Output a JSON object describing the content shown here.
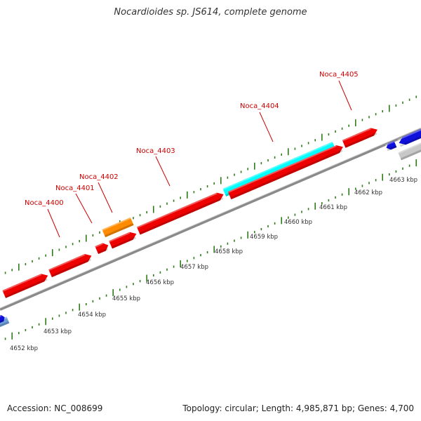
{
  "title": "Nocardioides sp. JS614, complete genome",
  "footer": {
    "accession": "Accession: NC_008699",
    "summary": "Topology: circular; Length: 4,985,871 bp; Genes: 4,700"
  },
  "colors": {
    "background": "#ffffff",
    "backbone": "#8a8a8a",
    "tick_green": "#2e7d1a",
    "label_red": "#cc0000",
    "gene_red": "#ee0000",
    "gene_orange": "#ff8c00",
    "gene_cyan": "#00ffff",
    "gene_blue": "#1010dd",
    "gene_lightblue": "#6fa0d8",
    "gene_gray": "#c8c8c8"
  },
  "scale_labels": [
    "4652 kbp",
    "4653 kbp",
    "4654 kbp",
    "4655 kbp",
    "4656 kbp",
    "4657 kbp",
    "4658 kbp",
    "4659 kbp",
    "4660 kbp",
    "4661 kbp",
    "4662 kbp",
    "4663 kbp"
  ],
  "gene_labels": [
    "Noca_4400",
    "Noca_4401",
    "Noca_4402",
    "Noca_4403",
    "Noca_4404",
    "Noca_4405"
  ]
}
